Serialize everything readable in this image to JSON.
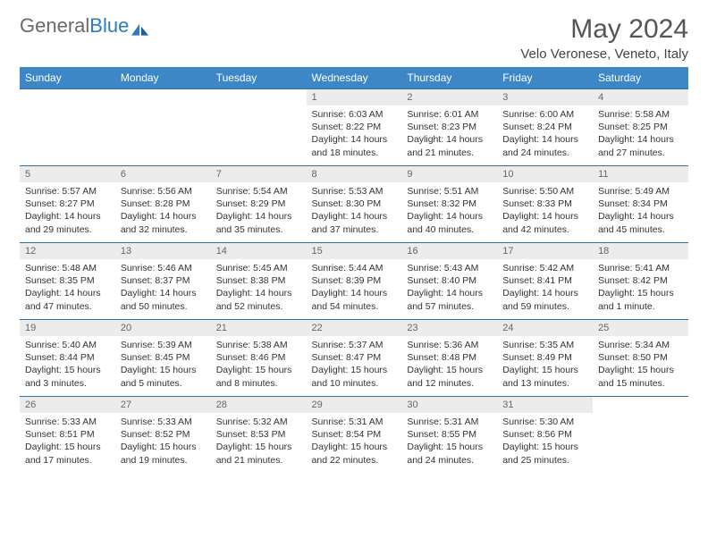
{
  "brand": {
    "part1": "General",
    "part2": "Blue"
  },
  "title": {
    "month": "May 2024",
    "location": "Velo Veronese, Veneto, Italy"
  },
  "dayHeaders": [
    "Sunday",
    "Monday",
    "Tuesday",
    "Wednesday",
    "Thursday",
    "Friday",
    "Saturday"
  ],
  "colors": {
    "header_bg": "#3d87c7",
    "header_text": "#ffffff",
    "row_border": "#2f6fa8",
    "daynum_bg": "#ececec",
    "text": "#333333",
    "brand_gray": "#6a6a6a",
    "brand_blue": "#2f7bbf"
  },
  "weeks": [
    [
      null,
      null,
      null,
      {
        "n": "1",
        "sr": "6:03 AM",
        "ss": "8:22 PM",
        "dl": "14 hours and 18 minutes."
      },
      {
        "n": "2",
        "sr": "6:01 AM",
        "ss": "8:23 PM",
        "dl": "14 hours and 21 minutes."
      },
      {
        "n": "3",
        "sr": "6:00 AM",
        "ss": "8:24 PM",
        "dl": "14 hours and 24 minutes."
      },
      {
        "n": "4",
        "sr": "5:58 AM",
        "ss": "8:25 PM",
        "dl": "14 hours and 27 minutes."
      }
    ],
    [
      {
        "n": "5",
        "sr": "5:57 AM",
        "ss": "8:27 PM",
        "dl": "14 hours and 29 minutes."
      },
      {
        "n": "6",
        "sr": "5:56 AM",
        "ss": "8:28 PM",
        "dl": "14 hours and 32 minutes."
      },
      {
        "n": "7",
        "sr": "5:54 AM",
        "ss": "8:29 PM",
        "dl": "14 hours and 35 minutes."
      },
      {
        "n": "8",
        "sr": "5:53 AM",
        "ss": "8:30 PM",
        "dl": "14 hours and 37 minutes."
      },
      {
        "n": "9",
        "sr": "5:51 AM",
        "ss": "8:32 PM",
        "dl": "14 hours and 40 minutes."
      },
      {
        "n": "10",
        "sr": "5:50 AM",
        "ss": "8:33 PM",
        "dl": "14 hours and 42 minutes."
      },
      {
        "n": "11",
        "sr": "5:49 AM",
        "ss": "8:34 PM",
        "dl": "14 hours and 45 minutes."
      }
    ],
    [
      {
        "n": "12",
        "sr": "5:48 AM",
        "ss": "8:35 PM",
        "dl": "14 hours and 47 minutes."
      },
      {
        "n": "13",
        "sr": "5:46 AM",
        "ss": "8:37 PM",
        "dl": "14 hours and 50 minutes."
      },
      {
        "n": "14",
        "sr": "5:45 AM",
        "ss": "8:38 PM",
        "dl": "14 hours and 52 minutes."
      },
      {
        "n": "15",
        "sr": "5:44 AM",
        "ss": "8:39 PM",
        "dl": "14 hours and 54 minutes."
      },
      {
        "n": "16",
        "sr": "5:43 AM",
        "ss": "8:40 PM",
        "dl": "14 hours and 57 minutes."
      },
      {
        "n": "17",
        "sr": "5:42 AM",
        "ss": "8:41 PM",
        "dl": "14 hours and 59 minutes."
      },
      {
        "n": "18",
        "sr": "5:41 AM",
        "ss": "8:42 PM",
        "dl": "15 hours and 1 minute."
      }
    ],
    [
      {
        "n": "19",
        "sr": "5:40 AM",
        "ss": "8:44 PM",
        "dl": "15 hours and 3 minutes."
      },
      {
        "n": "20",
        "sr": "5:39 AM",
        "ss": "8:45 PM",
        "dl": "15 hours and 5 minutes."
      },
      {
        "n": "21",
        "sr": "5:38 AM",
        "ss": "8:46 PM",
        "dl": "15 hours and 8 minutes."
      },
      {
        "n": "22",
        "sr": "5:37 AM",
        "ss": "8:47 PM",
        "dl": "15 hours and 10 minutes."
      },
      {
        "n": "23",
        "sr": "5:36 AM",
        "ss": "8:48 PM",
        "dl": "15 hours and 12 minutes."
      },
      {
        "n": "24",
        "sr": "5:35 AM",
        "ss": "8:49 PM",
        "dl": "15 hours and 13 minutes."
      },
      {
        "n": "25",
        "sr": "5:34 AM",
        "ss": "8:50 PM",
        "dl": "15 hours and 15 minutes."
      }
    ],
    [
      {
        "n": "26",
        "sr": "5:33 AM",
        "ss": "8:51 PM",
        "dl": "15 hours and 17 minutes."
      },
      {
        "n": "27",
        "sr": "5:33 AM",
        "ss": "8:52 PM",
        "dl": "15 hours and 19 minutes."
      },
      {
        "n": "28",
        "sr": "5:32 AM",
        "ss": "8:53 PM",
        "dl": "15 hours and 21 minutes."
      },
      {
        "n": "29",
        "sr": "5:31 AM",
        "ss": "8:54 PM",
        "dl": "15 hours and 22 minutes."
      },
      {
        "n": "30",
        "sr": "5:31 AM",
        "ss": "8:55 PM",
        "dl": "15 hours and 24 minutes."
      },
      {
        "n": "31",
        "sr": "5:30 AM",
        "ss": "8:56 PM",
        "dl": "15 hours and 25 minutes."
      },
      null
    ]
  ],
  "labels": {
    "sunrise": "Sunrise: ",
    "sunset": "Sunset: ",
    "daylight": "Daylight: "
  }
}
